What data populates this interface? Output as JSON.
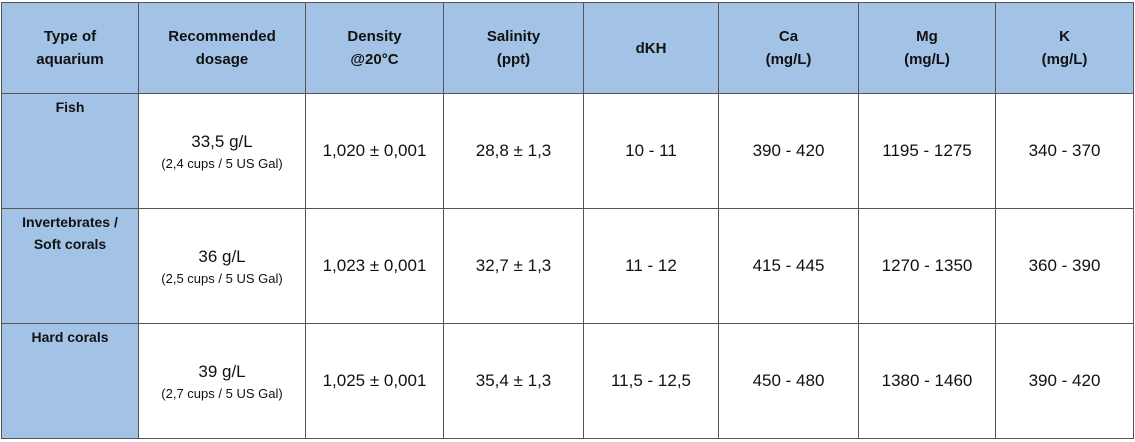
{
  "table": {
    "header": [
      [
        "Type of",
        "aquarium"
      ],
      [
        "Recommended",
        "dosage"
      ],
      [
        "Density",
        "@20°C"
      ],
      [
        "Salinity",
        "(ppt)"
      ],
      [
        "dKH"
      ],
      [
        "Ca",
        "(mg/L)"
      ],
      [
        "Mg",
        "(mg/L)"
      ],
      [
        "K",
        "(mg/L)"
      ]
    ],
    "rows": [
      {
        "type": [
          "Fish"
        ],
        "dosage": {
          "amount": "33,5 g/L",
          "note": "(2,4 cups / 5 US Gal)"
        },
        "cells": [
          "1,020 ± 0,001",
          "28,8 ± 1,3",
          "10 - 11",
          "390 - 420",
          "1195 - 1275",
          "340 - 370"
        ]
      },
      {
        "type": [
          "Invertebrates /",
          "Soft corals"
        ],
        "dosage": {
          "amount": "36 g/L",
          "note": "(2,5 cups / 5 US Gal)"
        },
        "cells": [
          "1,023 ± 0,001",
          "32,7 ± 1,3",
          "11 - 12",
          "415 - 445",
          "1270 - 1350",
          "360 - 390"
        ]
      },
      {
        "type": [
          "Hard corals"
        ],
        "dosage": {
          "amount": "39 g/L",
          "note": "(2,7 cups / 5 US Gal)"
        },
        "cells": [
          "1,025 ± 0,001",
          "35,4 ± 1,3",
          "11,5 - 12,5",
          "450 - 480",
          "1380 - 1460",
          "390 - 420"
        ]
      }
    ]
  }
}
